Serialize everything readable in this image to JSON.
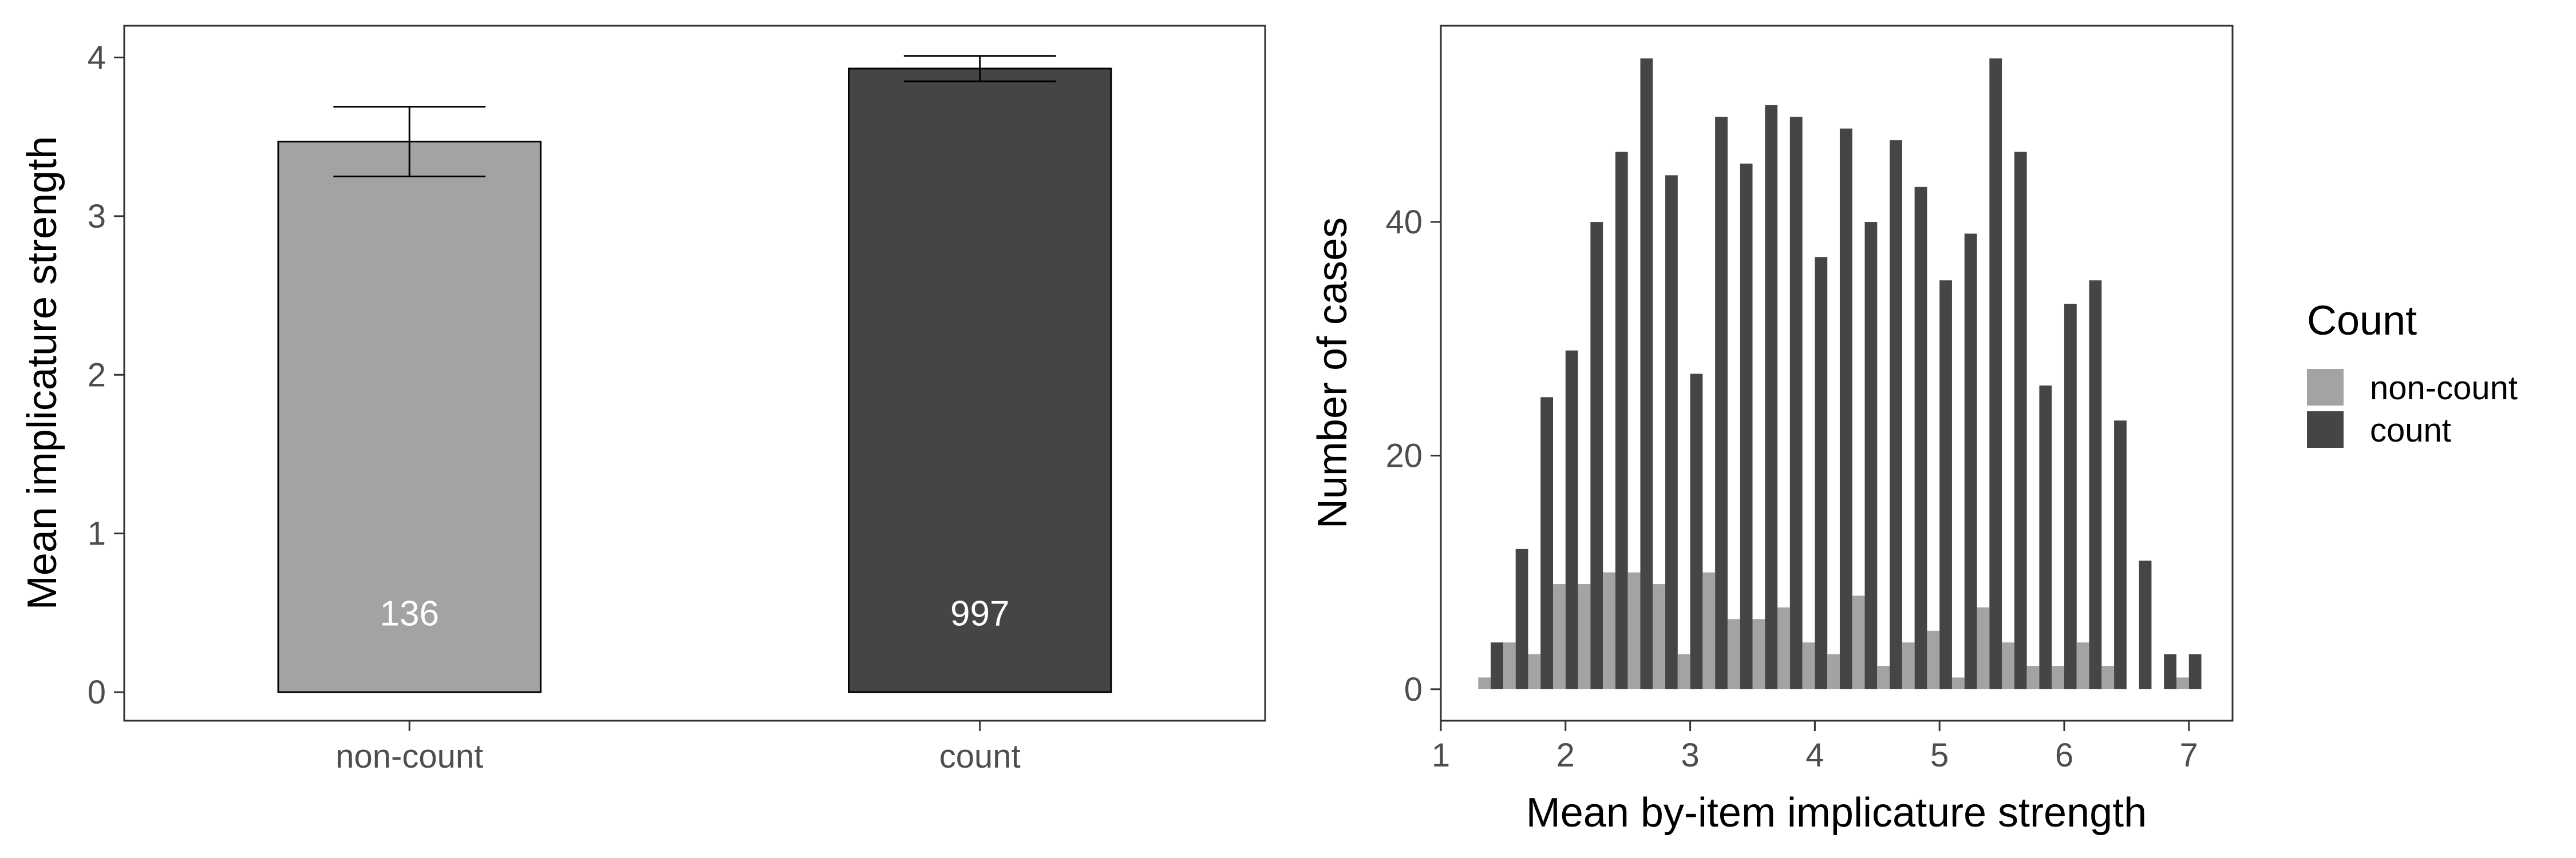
{
  "colors": {
    "noncount": "#a3a3a3",
    "count": "#454545",
    "axis": "#333333",
    "tick_text": "#4d4d4d",
    "bar_label": "#ffffff"
  },
  "chart_data": [
    {
      "type": "bar",
      "xlabel": "",
      "ylabel": "Mean implicature strength",
      "categories": [
        "non-count",
        "count"
      ],
      "values": [
        3.47,
        3.93
      ],
      "error_bars": [
        [
          3.25,
          3.69
        ],
        [
          3.85,
          4.01
        ]
      ],
      "bar_labels": [
        "136",
        "997"
      ],
      "ylim": [
        -0.18,
        4.2
      ],
      "yticks": [
        "0",
        "1",
        "2",
        "3",
        "4"
      ],
      "grid": false
    },
    {
      "type": "bar",
      "xlabel": "Mean by-item implicature strength",
      "ylabel": "Number of cases",
      "xlim": [
        1.0,
        7.35
      ],
      "ylim": [
        -2.7,
        56.8
      ],
      "xticks": [
        "1",
        "2",
        "3",
        "4",
        "5",
        "6",
        "7"
      ],
      "yticks": [
        "0",
        "20",
        "40"
      ],
      "bin_centers": [
        1.4,
        1.6,
        1.8,
        2.0,
        2.2,
        2.4,
        2.6,
        2.8,
        3.0,
        3.2,
        3.4,
        3.6,
        3.8,
        4.0,
        4.2,
        4.4,
        4.6,
        4.8,
        5.0,
        5.2,
        5.4,
        5.6,
        5.8,
        6.0,
        6.2,
        6.4,
        6.6,
        6.8,
        7.0
      ],
      "series": [
        {
          "name": "non-count",
          "values": [
            1,
            4,
            3,
            9,
            9,
            10,
            10,
            9,
            3,
            10,
            6,
            6,
            7,
            4,
            3,
            8,
            2,
            4,
            5,
            1,
            7,
            4,
            2,
            2,
            4,
            2,
            0,
            0,
            1
          ]
        },
        {
          "name": "count",
          "values": [
            4,
            12,
            25,
            29,
            40,
            46,
            54,
            44,
            27,
            49,
            45,
            50,
            49,
            37,
            48,
            40,
            47,
            43,
            35,
            39,
            54,
            46,
            26,
            33,
            35,
            23,
            11,
            3,
            3
          ]
        }
      ],
      "legend": {
        "title": "Count",
        "position": "right"
      },
      "grid": false
    }
  ]
}
